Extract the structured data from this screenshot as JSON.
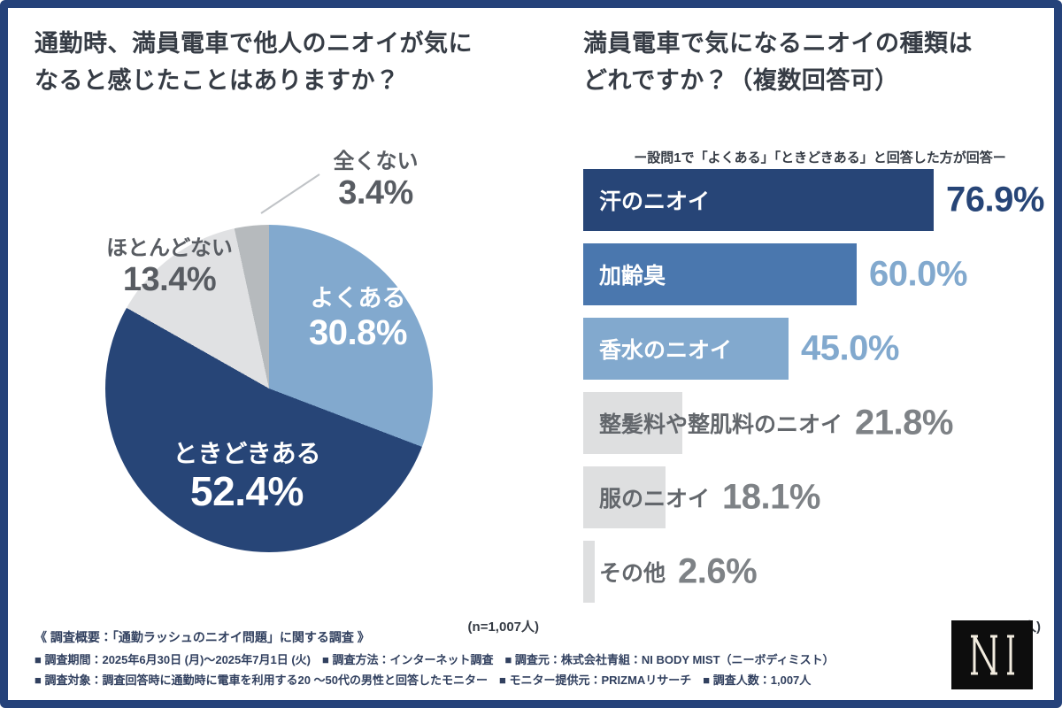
{
  "colors": {
    "frame_border": "#25427A",
    "background": "#FFFFFF",
    "title_text": "#363C45",
    "footer_text": "#31405F",
    "outside_label_text": "#585C62",
    "leader_line": "#C0C3C7",
    "logo_background": "#0D0D0D",
    "logo_letters": "#F2ECDF"
  },
  "chart_data": [
    {
      "type": "pie",
      "title": "通勤時、満員電車で他人のニオイが気になると感じたことはありますか？",
      "title_lines": [
        "通勤時、満員電車で他人のニオイが気に",
        "なると感じたことはありますか？"
      ],
      "labels": [
        "よくある",
        "ときどきある",
        "ほとんどない",
        "全くない"
      ],
      "values": [
        30.8,
        52.4,
        13.4,
        3.4
      ],
      "colors": [
        "#82A9CE",
        "#274577",
        "#E0E1E3",
        "#B6BABD"
      ],
      "start_angle_deg": 0,
      "direction": "clockwise",
      "legend_position": "on-slices",
      "sample_note": "(n=1,007人)"
    },
    {
      "type": "bar",
      "orientation": "horizontal",
      "title": "満員電車で気になるニオイの種類はどれですか？（複数回答可）",
      "title_lines": [
        "満員電車で気になるニオイの種類は",
        "どれですか？（複数回答可）"
      ],
      "subtitle": "ー設問1で「よくある」「ときどきある」と回答した方が回答ー",
      "categories": [
        "汗のニオイ",
        "加齢臭",
        "香水のニオイ",
        "整髪料や整肌料のニオイ",
        "服のニオイ",
        "その他"
      ],
      "values": [
        76.9,
        60.0,
        45.0,
        21.8,
        18.1,
        2.6
      ],
      "value_format": "percent_1dp",
      "xlim": [
        0,
        100
      ],
      "grid": false,
      "colors": [
        "#274577",
        "#4A77AE",
        "#82A9CE",
        "#DEDFE0",
        "#DEDFE0",
        "#DEDFE0"
      ],
      "label_colors": [
        "#FFFFFF",
        "#FFFFFF",
        "#FFFFFF",
        "#63676C",
        "#63676C",
        "#63676C"
      ],
      "value_colors": [
        "#274577",
        "#82A9CE",
        "#82A9CE",
        "#7E8286",
        "#7E8286",
        "#7E8286"
      ],
      "sample_note": "(n=838人)"
    }
  ],
  "footer": {
    "line1": "《 調査概要：「通勤ラッシュのニオイ問題」に関する調査 》",
    "line2": "■ 調査期間：2025年6月30日 (月)〜2025年7月1日 (火)　■ 調査方法：インターネット調査　■ 調査元：株式会社青組：NI BODY MIST（ニーボディミスト）",
    "line3": "■ 調査対象：調査回答時に通勤時に電車を利用する20 〜50代の男性と回答したモニター　■ モニター提供元：PRIZMAリサーチ　■ 調査人数：1,007人"
  },
  "brand": {
    "logo_text": "NI"
  }
}
